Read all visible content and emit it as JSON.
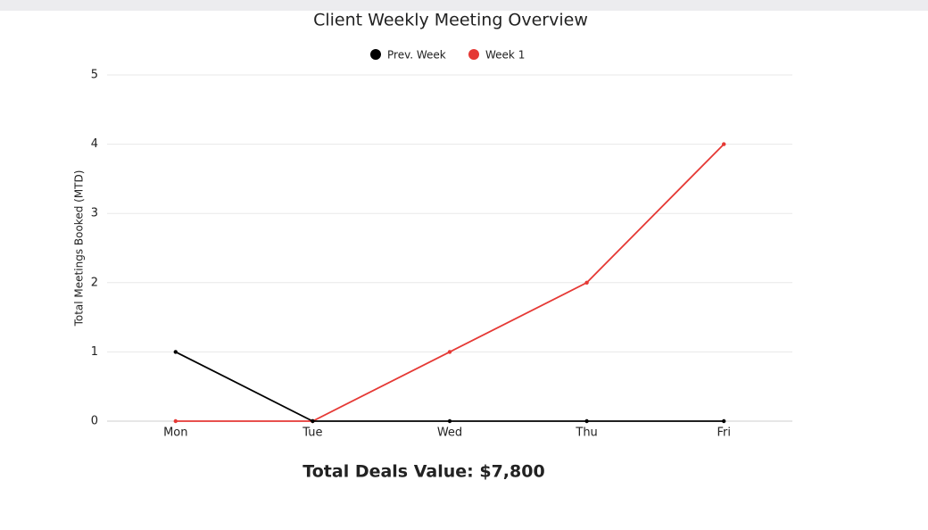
{
  "chart_data": {
    "type": "line",
    "title": "Client Weekly Meeting Overview",
    "y_label": "Total Meetings Booked (MTD)",
    "categories": [
      "Mon",
      "Tue",
      "Wed",
      "Thu",
      "Fri"
    ],
    "series": [
      {
        "name": "Prev. Week",
        "color": "#000000",
        "values": [
          1,
          0,
          0,
          0,
          0
        ]
      },
      {
        "name": "Week 1",
        "color": "#e53935",
        "values": [
          0,
          0,
          1,
          2,
          4
        ]
      }
    ],
    "ylim": [
      0,
      5
    ],
    "yticks": [
      0,
      1,
      2,
      3,
      4,
      5
    ],
    "grid": true,
    "legend": "top",
    "annotation": "Total Deals Value: $7,800"
  }
}
